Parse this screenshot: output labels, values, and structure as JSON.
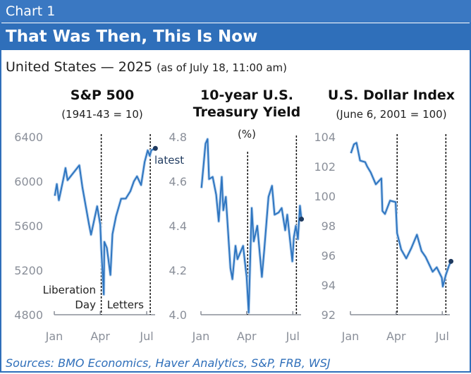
{
  "header": {
    "label": "Chart 1",
    "title": "That Was Then, This Is Now"
  },
  "subtitle": {
    "main": "United States — 2025",
    "note": "(as of July 18, 11:00 am)"
  },
  "source": "Sources: BMO Economics, Haver Analytics, S&P, FRB, WSJ",
  "colors": {
    "line": "#2e75c0",
    "halo": "#b9d3ee",
    "dot": "#1f3a5f",
    "axis": "#8a8f99",
    "brand": "#2f6fba"
  },
  "chart_data": [
    {
      "type": "line",
      "title": "S&P 500",
      "subtitle": "(1941-43 = 10)",
      "ylim": [
        4800,
        6400
      ],
      "yticks": [
        "6400",
        "6000",
        "5600",
        "5200",
        "4800"
      ],
      "ytick_values": [
        6400,
        6000,
        5600,
        5200,
        4800
      ],
      "xticks": [
        "Jan",
        "Apr",
        "Jul"
      ],
      "xtick_days": [
        0,
        90,
        181
      ],
      "events_days": [
        92,
        188
      ],
      "annotations": {
        "latest": "latest",
        "event1_line1": "Liberation",
        "event1_line2": "Day",
        "event2": "Letters"
      },
      "x_days": [
        1,
        5,
        9,
        19,
        22,
        26,
        49,
        55,
        68,
        72,
        84,
        90,
        92,
        97,
        98,
        103,
        110,
        114,
        121,
        131,
        140,
        149,
        156,
        162,
        170,
        177,
        183,
        187,
        190,
        198
      ],
      "values": [
        5870,
        5975,
        5830,
        6050,
        6120,
        6010,
        6144,
        5950,
        5614,
        5520,
        5776,
        5611,
        5396,
        4982,
        5456,
        5400,
        5158,
        5525,
        5686,
        5844,
        5845,
        5911,
        6000,
        6045,
        5967,
        6173,
        6279,
        6229,
        6280,
        6297
      ]
    },
    {
      "type": "line",
      "title": "10-year U.S. Treasury Yield",
      "subtitle": "(%)",
      "ylim": [
        4.0,
        4.8
      ],
      "yticks": [
        "4.8",
        "4.6",
        "4.4",
        "4.2",
        "4.0"
      ],
      "ytick_values": [
        4.8,
        4.6,
        4.4,
        4.2,
        4.0
      ],
      "xticks": [
        "Jan",
        "Apr",
        "Jul"
      ],
      "xtick_days": [
        0,
        90,
        181
      ],
      "events_days": [
        92,
        188
      ],
      "x_days": [
        1,
        9,
        13,
        16,
        23,
        30,
        35,
        41,
        44,
        49,
        58,
        62,
        68,
        72,
        83,
        86,
        90,
        94,
        100,
        104,
        111,
        120,
        125,
        133,
        140,
        145,
        153,
        159,
        166,
        170,
        180,
        183,
        187,
        191,
        195,
        198
      ],
      "values": [
        4.57,
        4.77,
        4.79,
        4.61,
        4.62,
        4.54,
        4.42,
        4.62,
        4.47,
        4.53,
        4.21,
        4.16,
        4.31,
        4.25,
        4.31,
        4.25,
        4.17,
        4.01,
        4.48,
        4.33,
        4.4,
        4.17,
        4.3,
        4.53,
        4.58,
        4.45,
        4.46,
        4.48,
        4.38,
        4.45,
        4.24,
        4.35,
        4.4,
        4.34,
        4.49,
        4.43
      ]
    },
    {
      "type": "line",
      "title": "U.S. Dollar Index",
      "subtitle": "(June 6, 2001 = 100)",
      "ylim": [
        92,
        104
      ],
      "yticks": [
        "104",
        "102",
        "100",
        "98",
        "96",
        "94",
        "92"
      ],
      "ytick_values": [
        104,
        102,
        100,
        98,
        96,
        94,
        92
      ],
      "xticks": [
        "Jan",
        "Apr",
        "Jul"
      ],
      "xtick_days": [
        0,
        90,
        181
      ],
      "events_days": [
        92,
        188
      ],
      "x_days": [
        1,
        7,
        12,
        19,
        29,
        33,
        40,
        50,
        61,
        63,
        68,
        78,
        89,
        92,
        100,
        110,
        120,
        131,
        140,
        148,
        155,
        162,
        170,
        180,
        182,
        188,
        194,
        198
      ],
      "values": [
        102.9,
        103.5,
        103.6,
        102.4,
        102.3,
        102.0,
        101.6,
        100.8,
        101.2,
        99.0,
        98.8,
        99.7,
        99.6,
        97.5,
        96.4,
        95.8,
        96.5,
        97.4,
        96.3,
        95.9,
        95.4,
        94.9,
        95.2,
        94.5,
        93.9,
        94.7,
        95.3,
        95.6
      ]
    }
  ]
}
